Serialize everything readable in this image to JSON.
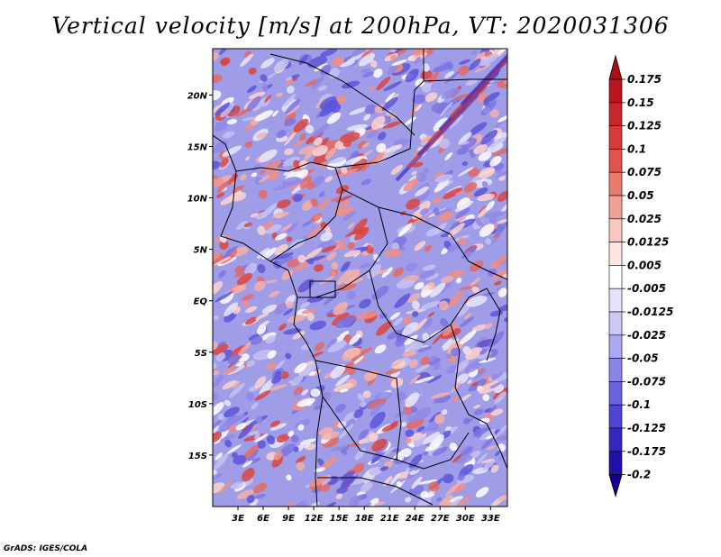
{
  "title": "Vertical velocity [m/s] at 200hPa, VT: 2020031306",
  "credit": "GrADS: IGES/COLA",
  "map": {
    "lat_labels": [
      "20N",
      "15N",
      "10N",
      "5N",
      "EQ",
      "5S",
      "10S",
      "15S"
    ],
    "lon_labels": [
      "3E",
      "6E",
      "9E",
      "12E",
      "15E",
      "18E",
      "21E",
      "24E",
      "27E",
      "30E",
      "33E"
    ],
    "lat_values": [
      20,
      15,
      10,
      5,
      0,
      -5,
      -10,
      -15
    ],
    "lon_values": [
      3,
      6,
      9,
      12,
      15,
      18,
      21,
      24,
      27,
      30,
      33
    ],
    "lat_range": [
      -20,
      24.5
    ],
    "lon_range": [
      0,
      35
    ]
  },
  "colorbar": {
    "labels": [
      "0.175",
      "0.15",
      "0.125",
      "0.1",
      "0.075",
      "0.05",
      "0.025",
      "0.0125",
      "0.005",
      "-0.005",
      "-0.0125",
      "-0.025",
      "-0.05",
      "-0.075",
      "-0.1",
      "-0.125",
      "-0.175",
      "-0.2"
    ],
    "colors": [
      "#a50f15",
      "#b8151f",
      "#c8262c",
      "#d63a3a",
      "#e0534f",
      "#e87a70",
      "#f0a096",
      "#f8c8c0",
      "#fde6e2",
      "#ffffff",
      "#e4e2fb",
      "#cbc8f6",
      "#aaa8f0",
      "#8a86e8",
      "#6a64df",
      "#4d45d4",
      "#3328c0",
      "#2010a8",
      "#140090"
    ]
  }
}
